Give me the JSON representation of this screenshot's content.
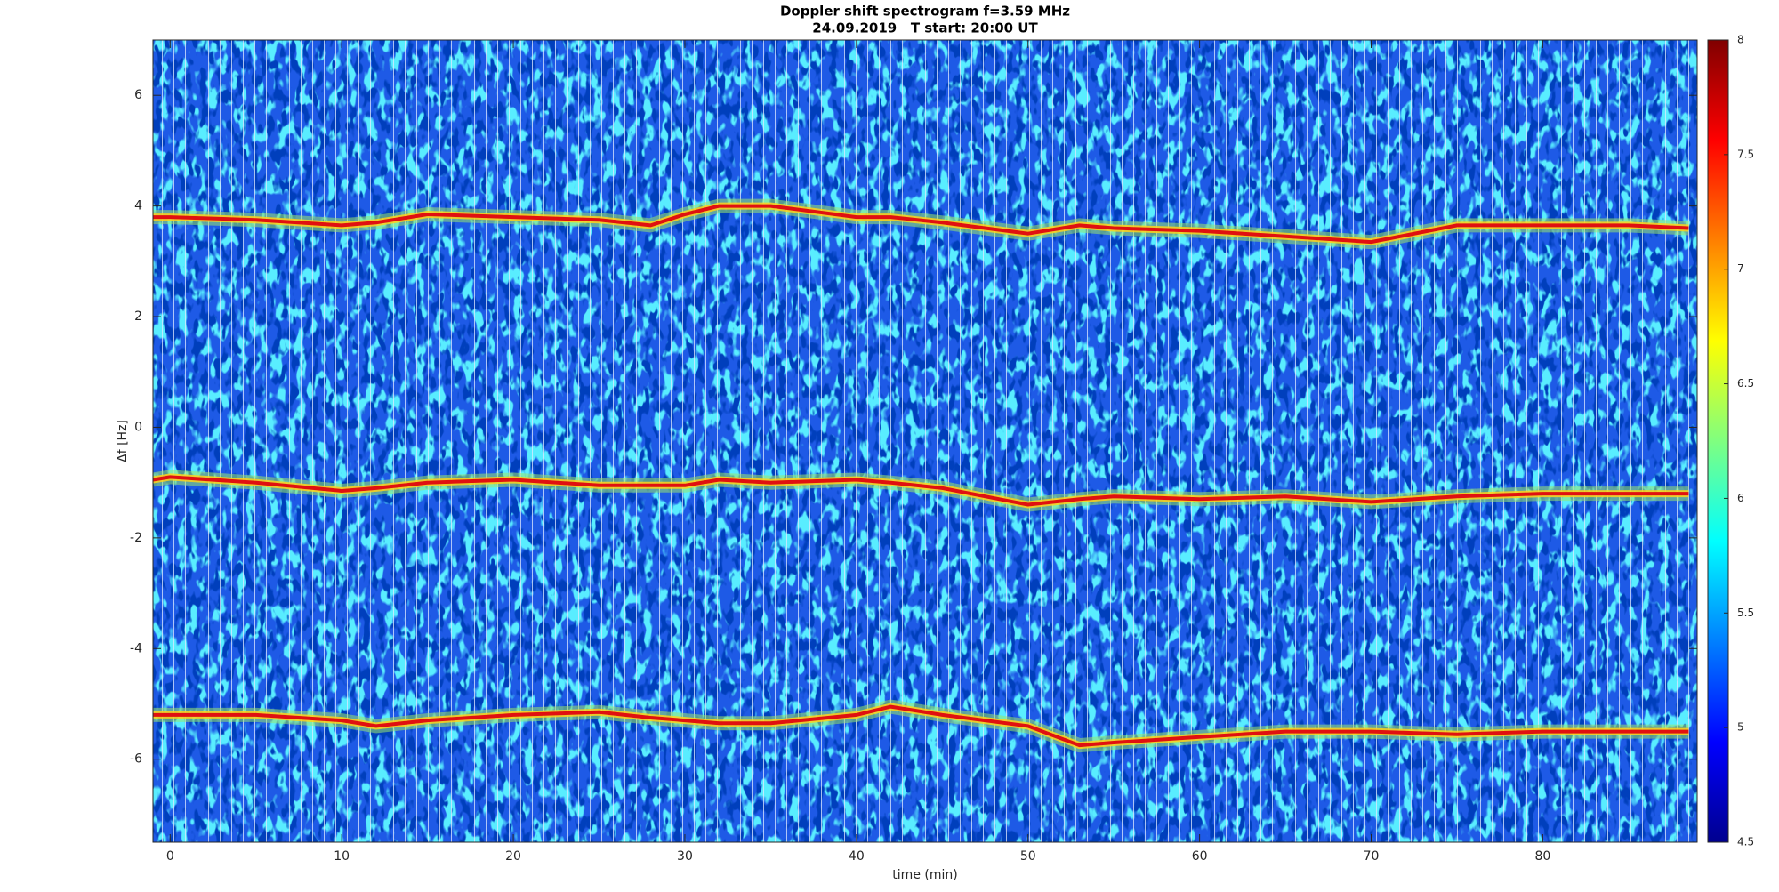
{
  "chart_data": {
    "type": "spectrogram",
    "title": "Doppler shift spectrogram f=3.59 MHz",
    "subtitle": "24.09.2019   T start: 20:00 UT",
    "xlabel": "time (min)",
    "ylabel": "Δf [Hz]",
    "x": [
      -1,
      0,
      5,
      10,
      12,
      15,
      20,
      25,
      28,
      30,
      32,
      35,
      40,
      42,
      45,
      50,
      53,
      55,
      60,
      65,
      70,
      75,
      80,
      85,
      88.5
    ],
    "series": [
      {
        "color": "#e01010",
        "values": [
          3.8,
          3.8,
          3.75,
          3.65,
          3.7,
          3.85,
          3.8,
          3.75,
          3.65,
          3.85,
          4.0,
          4.0,
          3.8,
          3.8,
          3.7,
          3.5,
          3.65,
          3.6,
          3.55,
          3.45,
          3.35,
          3.65,
          3.65,
          3.65,
          3.6
        ]
      },
      {
        "color": "#e01010",
        "values": [
          -0.95,
          -0.9,
          -1.0,
          -1.15,
          -1.1,
          -1.0,
          -0.95,
          -1.05,
          -1.05,
          -1.05,
          -0.95,
          -1.0,
          -0.95,
          -1.0,
          -1.1,
          -1.4,
          -1.3,
          -1.25,
          -1.3,
          -1.25,
          -1.35,
          -1.25,
          -1.2,
          -1.2,
          -1.2
        ]
      },
      {
        "color": "#e01010",
        "values": [
          -5.2,
          -5.2,
          -5.2,
          -5.3,
          -5.4,
          -5.3,
          -5.2,
          -5.15,
          -5.25,
          -5.3,
          -5.35,
          -5.35,
          -5.2,
          -5.05,
          -5.2,
          -5.4,
          -5.75,
          -5.7,
          -5.6,
          -5.5,
          -5.5,
          -5.55,
          -5.5,
          -5.5,
          -5.5
        ]
      }
    ],
    "xlim": [
      -1,
      89
    ],
    "ylim": [
      -7.5,
      7
    ],
    "xticks": [
      0,
      10,
      20,
      30,
      40,
      50,
      60,
      70,
      80
    ],
    "yticks": [
      -6,
      -4,
      -2,
      0,
      2,
      4,
      6
    ],
    "clim": [
      4.5,
      8
    ],
    "cticks": [
      4.5,
      5,
      5.5,
      6,
      6.5,
      7,
      7.5,
      8
    ]
  }
}
